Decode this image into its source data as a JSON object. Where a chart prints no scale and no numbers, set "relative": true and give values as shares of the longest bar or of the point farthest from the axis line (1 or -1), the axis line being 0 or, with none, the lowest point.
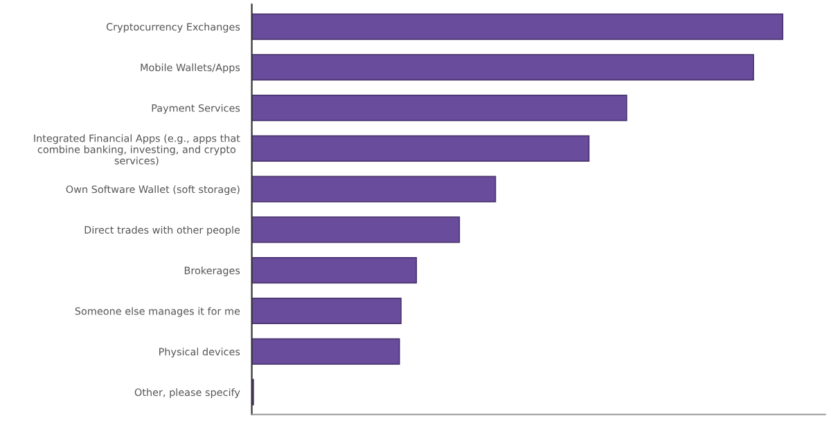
{
  "chart_data": {
    "type": "bar",
    "orientation": "horizontal",
    "relative": true,
    "categories": [
      "Cryptocurrency Exchanges",
      "Mobile Wallets/Apps",
      "Payment Services",
      "Integrated Financial Apps (e.g., apps that combine banking, investing, and crypto services)",
      "Own Software Wallet (soft storage)",
      "Direct trades with other people",
      "Brokerages",
      "Someone else manages it for me",
      "Physical devices",
      "Other, please specify"
    ],
    "values": [
      1,
      0.945,
      0.706,
      0.635,
      0.459,
      0.391,
      0.31,
      0.281,
      0.278,
      0.003
    ],
    "color": "#6a4c9c",
    "grid": false,
    "legend": false
  }
}
